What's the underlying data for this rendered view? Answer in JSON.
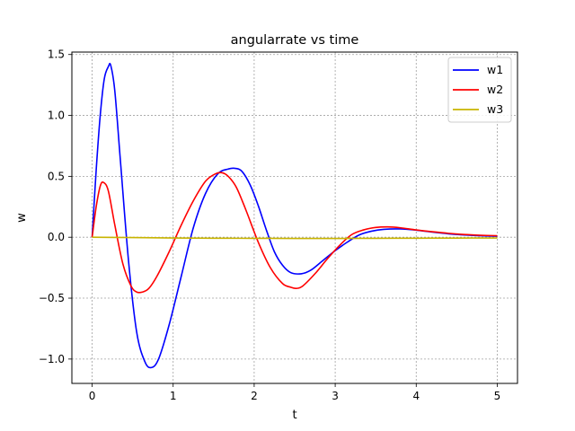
{
  "chart_data": {
    "type": "line",
    "title": "angularrate vs time",
    "xlabel": "t",
    "ylabel": "w",
    "xlim": [
      -0.25,
      5.25
    ],
    "ylim": [
      -1.2,
      1.52
    ],
    "xticks": [
      0,
      1,
      2,
      3,
      4,
      5
    ],
    "xtick_labels": [
      "0",
      "1",
      "2",
      "3",
      "4",
      "5"
    ],
    "yticks": [
      -1.0,
      -0.5,
      0.0,
      0.5,
      1.0,
      1.5
    ],
    "ytick_labels": [
      "−1.0",
      "−0.5",
      "0.0",
      "0.5",
      "1.0",
      "1.5"
    ],
    "grid": true,
    "legend_position": "top-right",
    "series": [
      {
        "name": "w1",
        "color": "#0000ff",
        "x": [
          0,
          0.05,
          0.1,
          0.15,
          0.2,
          0.23,
          0.28,
          0.35,
          0.45,
          0.55,
          0.65,
          0.73,
          0.82,
          0.95,
          1.1,
          1.25,
          1.4,
          1.55,
          1.68,
          1.77,
          1.85,
          1.95,
          2.05,
          2.15,
          2.25,
          2.35,
          2.45,
          2.58,
          2.7,
          2.85,
          3.0,
          3.15,
          3.3,
          3.45,
          3.6,
          3.8,
          4.0,
          4.2,
          4.4,
          4.6,
          4.8,
          5.0
        ],
        "y": [
          0,
          0.55,
          1.0,
          1.3,
          1.4,
          1.41,
          1.2,
          0.62,
          -0.2,
          -0.78,
          -1.02,
          -1.07,
          -1.0,
          -0.72,
          -0.32,
          0.08,
          0.36,
          0.52,
          0.56,
          0.565,
          0.54,
          0.43,
          0.26,
          0.06,
          -0.12,
          -0.23,
          -0.29,
          -0.3,
          -0.27,
          -0.19,
          -0.11,
          -0.04,
          0.02,
          0.05,
          0.065,
          0.068,
          0.058,
          0.042,
          0.028,
          0.018,
          0.012,
          0.008
        ]
      },
      {
        "name": "w2",
        "color": "#ff0000",
        "x": [
          0,
          0.05,
          0.1,
          0.14,
          0.2,
          0.28,
          0.38,
          0.48,
          0.55,
          0.62,
          0.7,
          0.8,
          0.95,
          1.1,
          1.25,
          1.4,
          1.52,
          1.6,
          1.68,
          1.78,
          1.9,
          2.05,
          2.2,
          2.35,
          2.45,
          2.52,
          2.6,
          2.75,
          2.9,
          3.05,
          3.2,
          3.35,
          3.5,
          3.65,
          3.8,
          4.0,
          4.2,
          4.4,
          4.6,
          4.8,
          5.0
        ],
        "y": [
          0,
          0.25,
          0.42,
          0.45,
          0.38,
          0.1,
          -0.22,
          -0.4,
          -0.45,
          -0.45,
          -0.42,
          -0.32,
          -0.12,
          0.1,
          0.3,
          0.46,
          0.52,
          0.53,
          0.5,
          0.41,
          0.22,
          -0.04,
          -0.25,
          -0.38,
          -0.41,
          -0.42,
          -0.4,
          -0.3,
          -0.18,
          -0.07,
          0.02,
          0.06,
          0.08,
          0.085,
          0.078,
          0.06,
          0.045,
          0.032,
          0.022,
          0.016,
          0.012
        ]
      },
      {
        "name": "w3",
        "color": "#c8b400",
        "x": [
          0,
          0.5,
          1.0,
          1.5,
          2.0,
          2.5,
          3.0,
          3.5,
          4.0,
          4.5,
          5.0
        ],
        "y": [
          0.0,
          -0.003,
          -0.006,
          -0.008,
          -0.009,
          -0.01,
          -0.01,
          -0.009,
          -0.008,
          -0.007,
          -0.006
        ]
      }
    ]
  }
}
